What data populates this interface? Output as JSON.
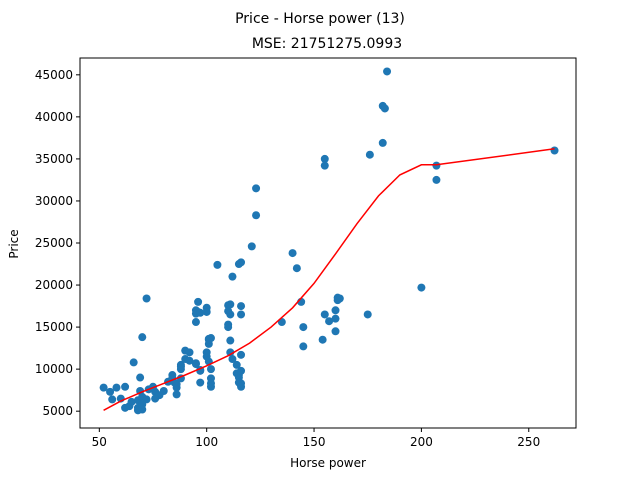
{
  "chart_data": {
    "type": "scatter",
    "title": "Price - Horse power (13)",
    "subtitle": "MSE: 21751275.0993",
    "xlabel": "Horse power",
    "ylabel": "Price",
    "xlim": [
      41,
      272
    ],
    "ylim": [
      3000,
      47000
    ],
    "xticks": [
      50,
      100,
      150,
      200,
      250
    ],
    "yticks": [
      5000,
      10000,
      15000,
      20000,
      25000,
      30000,
      35000,
      40000,
      45000
    ],
    "colors": {
      "points": "#1f77b4",
      "fit": "#ff0000",
      "axes": "#000000"
    },
    "series": [
      {
        "name": "data",
        "kind": "points",
        "x": [
          184,
          182,
          183,
          182,
          176,
          155,
          155,
          207,
          207,
          262,
          200,
          123,
          123,
          121,
          116,
          115,
          112,
          105,
          111,
          116,
          111,
          116,
          135,
          140,
          142,
          144,
          145,
          145,
          154,
          155,
          157,
          160,
          160,
          161,
          162,
          161,
          175,
          160,
          70,
          72,
          69,
          66,
          62,
          60,
          58,
          56,
          55,
          52,
          62,
          64,
          65,
          68,
          68,
          68,
          70,
          70,
          70,
          69,
          72,
          73,
          75,
          76,
          78,
          76,
          80,
          82,
          84,
          84,
          86,
          86,
          85,
          88,
          88,
          88,
          90,
          90,
          92,
          92,
          95,
          95,
          97,
          97,
          100,
          100,
          101,
          101,
          102,
          101,
          102,
          101,
          95,
          95,
          96,
          96,
          95,
          97,
          100,
          100,
          110,
          110,
          110,
          110,
          111,
          111,
          112,
          114,
          114,
          115,
          115,
          115,
          116,
          116,
          116,
          116,
          102,
          102,
          102,
          97,
          86,
          88
        ],
        "y": [
          45400,
          41300,
          41000,
          36900,
          35500,
          35000,
          34200,
          34200,
          32500,
          36000,
          19700,
          31500,
          28300,
          24600,
          22700,
          22500,
          21000,
          22400,
          17700,
          17500,
          16500,
          16500,
          15600,
          23800,
          22000,
          18000,
          15000,
          12700,
          13500,
          16500,
          15700,
          16000,
          17000,
          18500,
          18400,
          18200,
          16500,
          14500,
          13800,
          18400,
          9000,
          10800,
          7900,
          6500,
          7800,
          6400,
          7300,
          7800,
          5400,
          5600,
          6100,
          5100,
          5400,
          6300,
          5200,
          5800,
          6700,
          7400,
          6400,
          7600,
          7900,
          7300,
          6900,
          6500,
          7400,
          8500,
          8900,
          9300,
          7800,
          8200,
          8400,
          8900,
          10000,
          10500,
          11200,
          12200,
          12000,
          11000,
          10700,
          10600,
          9800,
          9900,
          11500,
          12000,
          13000,
          13600,
          13700,
          13500,
          10000,
          10900,
          15600,
          17000,
          18000,
          16800,
          16600,
          16700,
          17300,
          16800,
          17600,
          16900,
          15300,
          15000,
          13400,
          12000,
          11200,
          10500,
          9500,
          9300,
          9000,
          8400,
          7900,
          8300,
          9800,
          11700,
          8900,
          7900,
          8300,
          8400,
          7000,
          10300
        ],
        "r": 4
      },
      {
        "name": "fit",
        "kind": "line",
        "x": [
          52,
          60,
          70,
          80,
          90,
          100,
          110,
          120,
          130,
          140,
          150,
          160,
          170,
          180,
          190,
          200,
          207,
          262
        ],
        "y": [
          5100,
          6200,
          7300,
          8300,
          9300,
          10400,
          11600,
          13100,
          15000,
          17300,
          20200,
          23700,
          27300,
          30600,
          33100,
          34300,
          34300,
          36200
        ]
      }
    ]
  }
}
